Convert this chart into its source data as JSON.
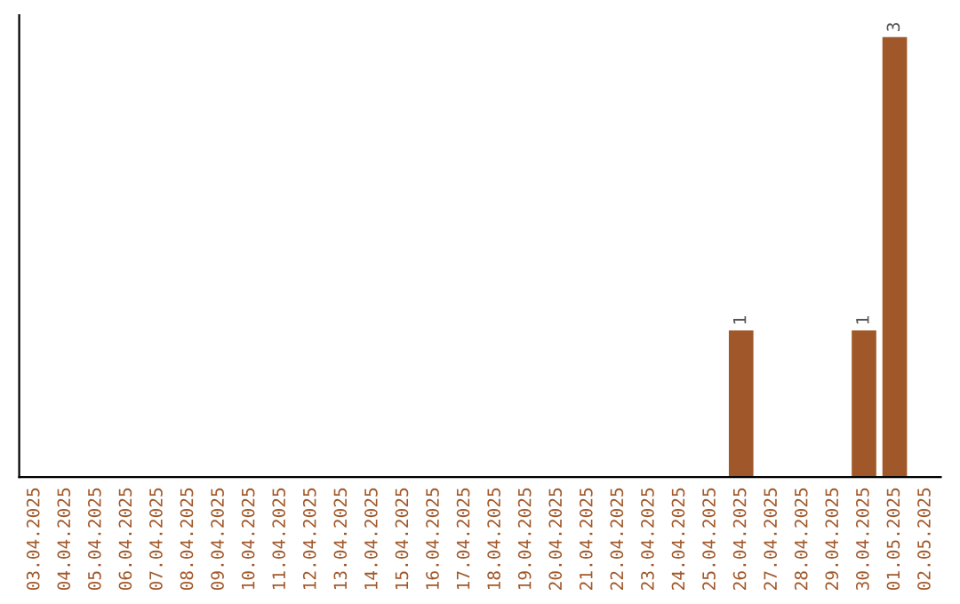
{
  "chart_data": {
    "type": "bar",
    "categories": [
      "03.04.2025",
      "04.04.2025",
      "05.04.2025",
      "06.04.2025",
      "07.04.2025",
      "08.04.2025",
      "09.04.2025",
      "10.04.2025",
      "11.04.2025",
      "12.04.2025",
      "13.04.2025",
      "14.04.2025",
      "15.04.2025",
      "16.04.2025",
      "17.04.2025",
      "18.04.2025",
      "19.04.2025",
      "20.04.2025",
      "21.04.2025",
      "22.04.2025",
      "23.04.2025",
      "24.04.2025",
      "25.04.2025",
      "26.04.2025",
      "27.04.2025",
      "28.04.2025",
      "29.04.2025",
      "30.04.2025",
      "01.05.2025",
      "02.05.2025"
    ],
    "values": [
      null,
      null,
      null,
      null,
      null,
      null,
      null,
      null,
      null,
      null,
      null,
      null,
      null,
      null,
      null,
      null,
      null,
      null,
      null,
      null,
      null,
      null,
      null,
      1,
      null,
      null,
      null,
      1,
      3,
      null
    ],
    "value_labels": [
      null,
      null,
      null,
      null,
      null,
      null,
      null,
      null,
      null,
      null,
      null,
      null,
      null,
      null,
      null,
      null,
      null,
      null,
      null,
      null,
      null,
      null,
      null,
      "1",
      null,
      null,
      null,
      "1",
      "3",
      null
    ],
    "color": "#a0582a",
    "tick_labels": "x",
    "grid": false,
    "legend": false
  }
}
